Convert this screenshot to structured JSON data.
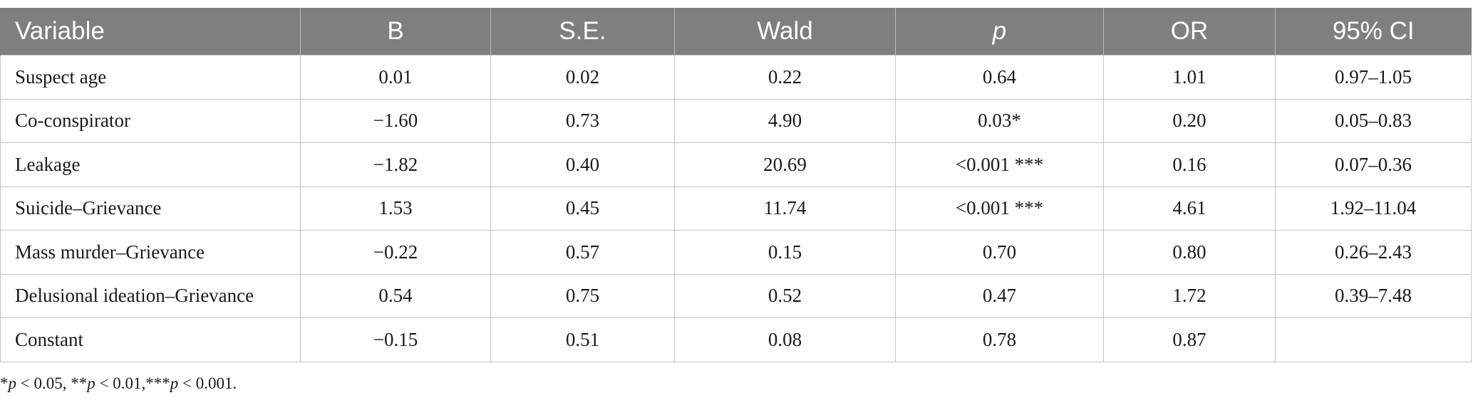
{
  "table": {
    "headers": [
      "Variable",
      "B",
      "S.E.",
      "Wald",
      "p",
      "OR",
      "95% CI"
    ],
    "rows": [
      [
        "Suspect age",
        "0.01",
        "0.02",
        "0.22",
        "0.64",
        "1.01",
        "0.97–1.05"
      ],
      [
        "Co-conspirator",
        "−1.60",
        "0.73",
        "4.90",
        "0.03*",
        "0.20",
        "0.05–0.83"
      ],
      [
        "Leakage",
        "−1.82",
        "0.40",
        "20.69",
        "<0.001 ***",
        "0.16",
        "0.07–0.36"
      ],
      [
        "Suicide–Grievance",
        "1.53",
        "0.45",
        "11.74",
        "<0.001 ***",
        "4.61",
        "1.92–11.04"
      ],
      [
        "Mass murder–Grievance",
        "−0.22",
        "0.57",
        "0.15",
        "0.70",
        "0.80",
        "0.26–2.43"
      ],
      [
        "Delusional ideation–Grievance",
        "0.54",
        "0.75",
        "0.52",
        "0.47",
        "1.72",
        "0.39–7.48"
      ],
      [
        "Constant",
        "−0.15",
        "0.51",
        "0.08",
        "0.78",
        "0.87",
        ""
      ]
    ]
  },
  "footnote": {
    "part1": "*",
    "p1": "p",
    "part2": " < 0.05, **",
    "p2": "p",
    "part3": " < 0.01,***",
    "p3": "p",
    "part4": " < 0.001."
  },
  "colors": {
    "header_bg": "#7f7f7e",
    "header_text": "#ffffff",
    "grid": "#c4c4c4"
  }
}
